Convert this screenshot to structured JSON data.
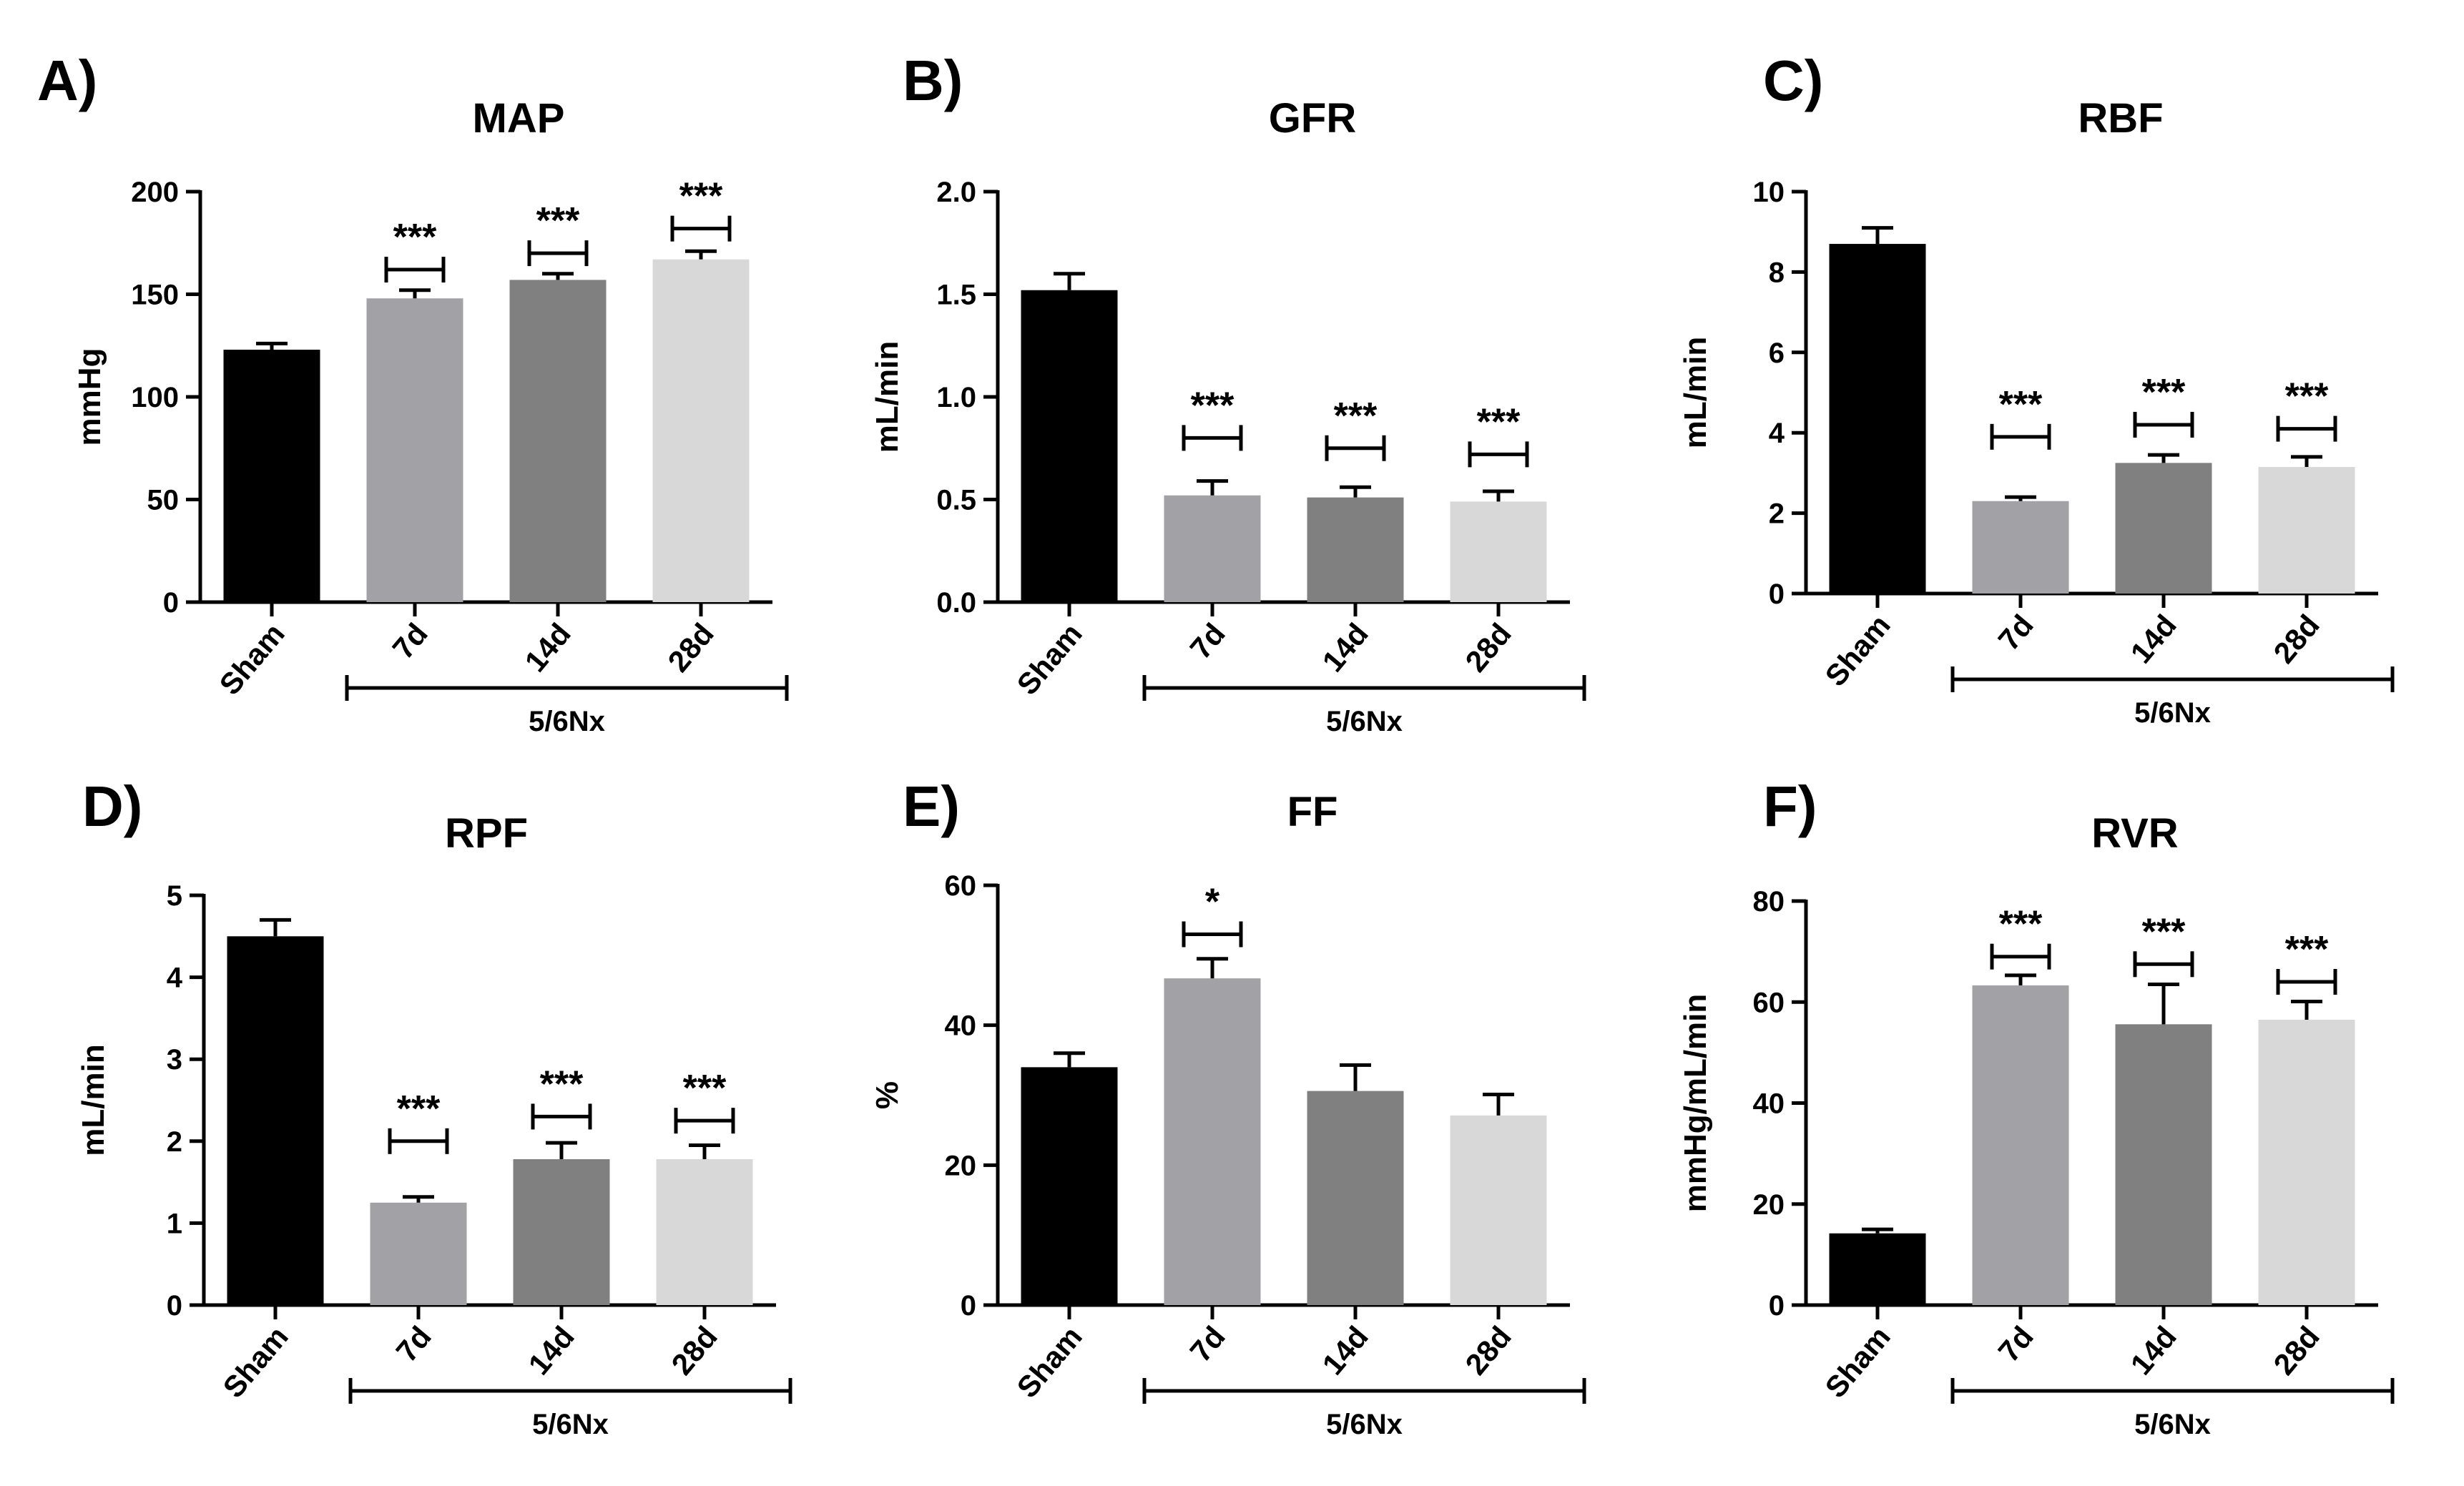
{
  "figure": {
    "group_label": "5/6Nx",
    "categories": [
      "Sham",
      "7d",
      "14d",
      "28d"
    ],
    "bar_colors": [
      "#000000",
      "#a2a2a6",
      "#808080",
      "#d8d8d8"
    ]
  },
  "chart_data": [
    {
      "panel": "A)",
      "type": "bar",
      "title": "MAP",
      "ylabel": "mmHg",
      "categories": [
        "Sham",
        "7d",
        "14d",
        "28d"
      ],
      "values": [
        123,
        148,
        157,
        167
      ],
      "errors": [
        3,
        4,
        3,
        4
      ],
      "ylim": [
        0,
        200
      ],
      "yticks": [
        0,
        50,
        100,
        150,
        200
      ],
      "ytick_labels": [
        "0",
        "50",
        "100",
        "150",
        "200"
      ],
      "significance": [
        "",
        "***",
        "***",
        "***"
      ],
      "sig_bracket_values": [
        null,
        162,
        170,
        182
      ]
    },
    {
      "panel": "B)",
      "type": "bar",
      "title": "GFR",
      "ylabel": "mL/min",
      "categories": [
        "Sham",
        "7d",
        "14d",
        "28d"
      ],
      "values": [
        1.52,
        0.52,
        0.51,
        0.49
      ],
      "errors": [
        0.08,
        0.07,
        0.05,
        0.05
      ],
      "ylim": [
        0,
        2.0
      ],
      "yticks": [
        0,
        0.5,
        1.0,
        1.5,
        2.0
      ],
      "ytick_labels": [
        "0.0",
        "0.5",
        "1.0",
        "1.5",
        "2.0"
      ],
      "significance": [
        "",
        "***",
        "***",
        "***"
      ],
      "sig_bracket_values": [
        null,
        0.8,
        0.75,
        0.72
      ]
    },
    {
      "panel": "C)",
      "type": "bar",
      "title": "RBF",
      "ylabel": "mL/min",
      "categories": [
        "Sham",
        "7d",
        "14d",
        "28d"
      ],
      "values": [
        8.7,
        2.3,
        3.25,
        3.15
      ],
      "errors": [
        0.4,
        0.1,
        0.2,
        0.25
      ],
      "ylim": [
        0,
        10
      ],
      "yticks": [
        0,
        2,
        4,
        6,
        8,
        10
      ],
      "ytick_labels": [
        "0",
        "2",
        "4",
        "6",
        "8",
        "10"
      ],
      "significance": [
        "",
        "***",
        "***",
        "***"
      ],
      "sig_bracket_values": [
        null,
        3.9,
        4.2,
        4.1
      ]
    },
    {
      "panel": "D)",
      "type": "bar",
      "title": "RPF",
      "ylabel": "mL/min",
      "categories": [
        "Sham",
        "7d",
        "14d",
        "28d"
      ],
      "values": [
        4.5,
        1.25,
        1.78,
        1.78
      ],
      "errors": [
        0.2,
        0.07,
        0.2,
        0.17
      ],
      "ylim": [
        0,
        5
      ],
      "yticks": [
        0,
        1,
        2,
        3,
        4,
        5
      ],
      "ytick_labels": [
        "0",
        "1",
        "2",
        "3",
        "4",
        "5"
      ],
      "significance": [
        "",
        "***",
        "***",
        "***"
      ],
      "sig_bracket_values": [
        null,
        2.0,
        2.3,
        2.25
      ]
    },
    {
      "panel": "E)",
      "type": "bar",
      "title": "FF",
      "ylabel": "%",
      "categories": [
        "Sham",
        "7d",
        "14d",
        "28d"
      ],
      "values": [
        34,
        46.7,
        30.6,
        27.1
      ],
      "errors": [
        2,
        2.8,
        3.7,
        3
      ],
      "ylim": [
        0,
        60
      ],
      "yticks": [
        0,
        20,
        40,
        60
      ],
      "ytick_labels": [
        "0",
        "20",
        "40",
        "60"
      ],
      "significance": [
        "",
        "*",
        "",
        ""
      ],
      "sig_bracket_values": [
        null,
        53,
        null,
        null
      ]
    },
    {
      "panel": "F)",
      "type": "bar",
      "title": "RVR",
      "ylabel": "mmHg/mL/min",
      "categories": [
        "Sham",
        "7d",
        "14d",
        "28d"
      ],
      "values": [
        14.2,
        63.3,
        55.6,
        56.5
      ],
      "errors": [
        0.8,
        2,
        7.9,
        3.6
      ],
      "ylim": [
        0,
        80
      ],
      "yticks": [
        0,
        20,
        40,
        60,
        80
      ],
      "ytick_labels": [
        "0",
        "20",
        "40",
        "60",
        "80"
      ],
      "significance": [
        "",
        "***",
        "***",
        "***"
      ],
      "sig_bracket_values": [
        null,
        69,
        67.5,
        64
      ]
    }
  ]
}
